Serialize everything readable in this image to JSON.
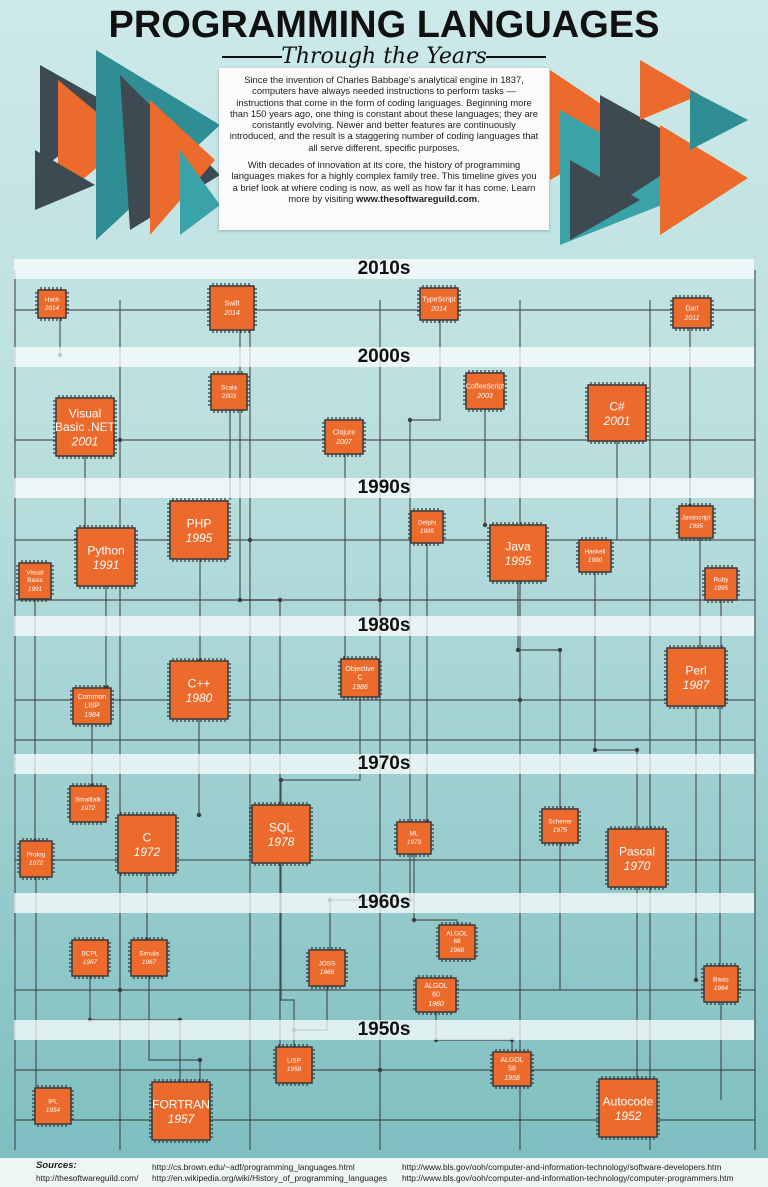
{
  "header": {
    "title": "PROGRAMMING LANGUAGES",
    "subtitle": "Through the Years"
  },
  "intro": {
    "paragraph1": "Since the invention of Charles Babbage's analytical engine in 1837, computers have always needed instructions to perform tasks — instructions that come in the form of coding languages. Beginning more than 150 years ago, one thing is constant about these languages; they are constantly evolving. Newer and better features are continuously introduced, and the result is a staggering number of coding languages that all serve different, specific purposes.",
    "paragraph2_prefix": "With decades of innovation at its core, the history of programming languages makes for a highly complex family tree. This timeline gives you a brief look at where coding is now, as well as how far it has come. Learn more by visiting ",
    "paragraph2_link": "www.thesoftwareguild.com",
    "paragraph2_suffix": "."
  },
  "decades": [
    "2010s",
    "2000s",
    "1990s",
    "1980s",
    "1970s",
    "1960s",
    "1950s"
  ],
  "languages": [
    {
      "name": "Hack",
      "year": "2014"
    },
    {
      "name": "Swift",
      "year": "2014"
    },
    {
      "name": "TypeScript",
      "year": "2014"
    },
    {
      "name": "Dart",
      "year": "2011"
    },
    {
      "name": "Scala",
      "year": "2003"
    },
    {
      "name": "CoffeeScript",
      "year": "2003"
    },
    {
      "name": "Visual Basic .NET",
      "year": "2001"
    },
    {
      "name": "Clojure",
      "year": "2007"
    },
    {
      "name": "C#",
      "year": "2001"
    },
    {
      "name": "PHP",
      "year": "1995"
    },
    {
      "name": "Delphi",
      "year": "1995"
    },
    {
      "name": "Javascript",
      "year": "1995"
    },
    {
      "name": "Python",
      "year": "1991"
    },
    {
      "name": "Java",
      "year": "1995"
    },
    {
      "name": "Haskell",
      "year": "1990"
    },
    {
      "name": "Visual Basic",
      "year": "1991"
    },
    {
      "name": "Ruby",
      "year": "1995"
    },
    {
      "name": "C++",
      "year": "1980"
    },
    {
      "name": "Objective C",
      "year": "1986"
    },
    {
      "name": "Perl",
      "year": "1987"
    },
    {
      "name": "Common LISP",
      "year": "1984"
    },
    {
      "name": "Smalltalk",
      "year": "1972"
    },
    {
      "name": "C",
      "year": "1972"
    },
    {
      "name": "SQL",
      "year": "1978"
    },
    {
      "name": "ML",
      "year": "1973"
    },
    {
      "name": "Scheme",
      "year": "1975"
    },
    {
      "name": "Pascal",
      "year": "1970"
    },
    {
      "name": "Prolog",
      "year": "1972"
    },
    {
      "name": "ALGOL 68",
      "year": "1968"
    },
    {
      "name": "BCPL",
      "year": "1967"
    },
    {
      "name": "Simula",
      "year": "1967"
    },
    {
      "name": "JOSS",
      "year": "1966"
    },
    {
      "name": "ALGOL 60",
      "year": "1960"
    },
    {
      "name": "Basic",
      "year": "1964"
    },
    {
      "name": "LISP",
      "year": "1958"
    },
    {
      "name": "ALGOL 58",
      "year": "1958"
    },
    {
      "name": "IPL",
      "year": "1954"
    },
    {
      "name": "FORTRAN",
      "year": "1957"
    },
    {
      "name": "Autocode",
      "year": "1952"
    }
  ],
  "sources": {
    "label": "Sources:",
    "items": [
      "http://thesoftwareguild.com/",
      "http://cs.brown.edu/~adf/programming_languages.html",
      "http://en.wikipedia.org/wiki/History_of_programming_languages",
      "http://www.bls.gov/ooh/computer-and-information-technology/software-developers.htm",
      "http://www.bls.gov/ooh/computer-and-information-technology/computer-programmers.htm"
    ]
  },
  "colors": {
    "chip_orange": "#ec6a2b",
    "chip_border": "#3a3a3a",
    "wire": "#3d3d3d",
    "teal_dark": "#1f7f86",
    "teal_mid": "#3aa3a8",
    "triangle_orange": "#ec6a2b",
    "triangle_grey": "#3e4a52"
  }
}
